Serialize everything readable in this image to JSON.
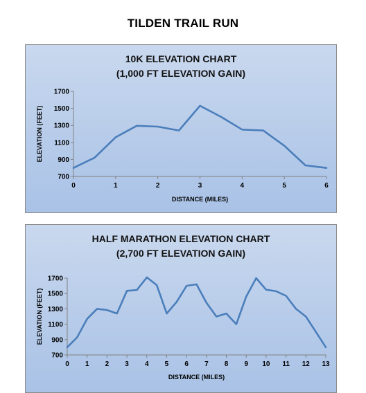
{
  "page": {
    "title": "TILDEN TRAIL RUN"
  },
  "colors": {
    "line": "#4a7ebb",
    "panel_top": "#c9d8ee",
    "panel_bottom": "#a9c2e6"
  },
  "chart_data": [
    {
      "type": "line",
      "title": "10K ELEVATION CHART",
      "subtitle": "(1,000 FT ELEVATION GAIN)",
      "xlabel": "DISTANCE (MILES)",
      "ylabel": "ELEVATION (FEET)",
      "xlim": [
        0,
        6
      ],
      "ylim": [
        700,
        1700
      ],
      "xticks": [
        0,
        1,
        2,
        3,
        4,
        5,
        6
      ],
      "yticks": [
        700,
        900,
        1100,
        1300,
        1500,
        1700
      ],
      "grid": false,
      "series": [
        {
          "x": [
            0,
            0.5,
            1,
            1.5,
            2,
            2.5,
            3,
            3.5,
            4,
            4.5,
            5,
            5.5,
            6
          ],
          "y": [
            800,
            920,
            1160,
            1295,
            1285,
            1240,
            1530,
            1400,
            1250,
            1240,
            1060,
            830,
            800
          ]
        }
      ]
    },
    {
      "type": "line",
      "title": "HALF MARATHON ELEVATION CHART",
      "subtitle": "(2,700 FT ELEVATION GAIN)",
      "xlabel": "DISTANCE (MILES)",
      "ylabel": "ELEVATION (FEET)",
      "xlim": [
        0,
        13
      ],
      "ylim": [
        700,
        1700
      ],
      "xticks": [
        0,
        1,
        2,
        3,
        4,
        5,
        6,
        7,
        8,
        9,
        10,
        11,
        12,
        13
      ],
      "yticks": [
        700,
        900,
        1100,
        1300,
        1500,
        1700
      ],
      "grid": false,
      "series": [
        {
          "x": [
            0,
            0.5,
            1,
            1.5,
            2,
            2.5,
            3,
            3.5,
            4,
            4.5,
            5,
            5.5,
            6,
            6.5,
            7,
            7.5,
            8,
            8.5,
            9,
            9.5,
            10,
            10.5,
            11,
            11.5,
            12,
            12.5,
            13
          ],
          "y": [
            800,
            930,
            1170,
            1300,
            1285,
            1240,
            1535,
            1545,
            1710,
            1610,
            1240,
            1390,
            1600,
            1620,
            1380,
            1200,
            1240,
            1100,
            1460,
            1700,
            1550,
            1530,
            1470,
            1300,
            1200,
            1000,
            800
          ]
        }
      ]
    }
  ]
}
